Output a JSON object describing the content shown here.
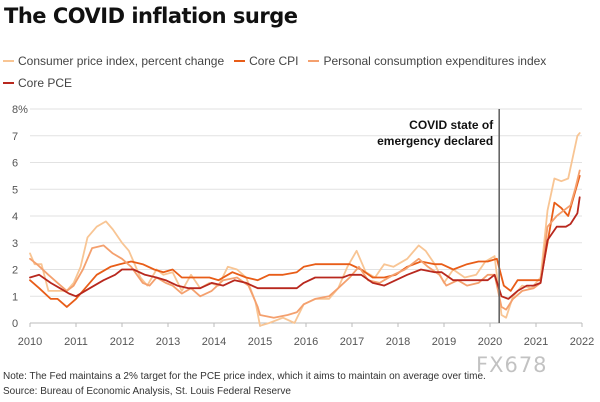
{
  "chart_data": {
    "type": "line",
    "title": "The COVID inflation surge",
    "ylabel": "",
    "xlabel": "",
    "xlim": [
      2010,
      2022
    ],
    "ylim": [
      0,
      8
    ],
    "y_ticks": [
      0,
      1,
      2,
      3,
      4,
      5,
      6,
      7,
      8
    ],
    "y_tick_labels": [
      "0",
      "1",
      "2",
      "3",
      "4",
      "5",
      "6",
      "7",
      "8%"
    ],
    "x_ticks": [
      2010,
      2011,
      2012,
      2013,
      2014,
      2015,
      2016,
      2017,
      2018,
      2019,
      2020,
      2021,
      2022
    ],
    "x_tick_labels": [
      "2010",
      "2011",
      "2012",
      "2013",
      "2014",
      "2015",
      "2016",
      "2017",
      "2018",
      "2019",
      "2020",
      "2021",
      "2022"
    ],
    "grid": "horizontal",
    "legend_position": "top",
    "annotation": {
      "x": 2020.2,
      "lines": [
        "COVID state of",
        "emergency declared"
      ]
    },
    "series": [
      {
        "name": "Consumer price index, percent change",
        "color": "#f8c594",
        "points": [
          [
            2010,
            2.6
          ],
          [
            2010.1,
            2.2
          ],
          [
            2010.25,
            2.2
          ],
          [
            2010.4,
            1.2
          ],
          [
            2010.6,
            1.2
          ],
          [
            2010.8,
            1.2
          ],
          [
            2010.95,
            1.5
          ],
          [
            2011.1,
            2.1
          ],
          [
            2011.25,
            3.2
          ],
          [
            2011.45,
            3.6
          ],
          [
            2011.65,
            3.8
          ],
          [
            2011.8,
            3.5
          ],
          [
            2012,
            3.0
          ],
          [
            2012.15,
            2.7
          ],
          [
            2012.4,
            1.7
          ],
          [
            2012.55,
            1.4
          ],
          [
            2012.75,
            2.0
          ],
          [
            2012.9,
            1.8
          ],
          [
            2013.1,
            1.9
          ],
          [
            2013.3,
            1.2
          ],
          [
            2013.5,
            1.8
          ],
          [
            2013.7,
            1.3
          ],
          [
            2013.9,
            1.5
          ],
          [
            2014.1,
            1.4
          ],
          [
            2014.3,
            2.1
          ],
          [
            2014.5,
            2.0
          ],
          [
            2014.7,
            1.7
          ],
          [
            2014.9,
            0.8
          ],
          [
            2015,
            -0.1
          ],
          [
            2015.2,
            0.0
          ],
          [
            2015.5,
            0.2
          ],
          [
            2015.75,
            0.0
          ],
          [
            2015.95,
            0.7
          ],
          [
            2016.2,
            0.9
          ],
          [
            2016.5,
            0.9
          ],
          [
            2016.7,
            1.3
          ],
          [
            2016.9,
            2.1
          ],
          [
            2017.1,
            2.7
          ],
          [
            2017.3,
            1.9
          ],
          [
            2017.5,
            1.7
          ],
          [
            2017.7,
            2.2
          ],
          [
            2017.9,
            2.1
          ],
          [
            2018.2,
            2.4
          ],
          [
            2018.45,
            2.9
          ],
          [
            2018.6,
            2.7
          ],
          [
            2018.8,
            2.2
          ],
          [
            2019.0,
            1.5
          ],
          [
            2019.2,
            2.0
          ],
          [
            2019.45,
            1.7
          ],
          [
            2019.7,
            1.8
          ],
          [
            2019.9,
            2.3
          ],
          [
            2020.1,
            2.5
          ],
          [
            2020.25,
            0.3
          ],
          [
            2020.35,
            0.2
          ],
          [
            2020.5,
            1.0
          ],
          [
            2020.7,
            1.4
          ],
          [
            2020.9,
            1.3
          ],
          [
            2021.1,
            1.7
          ],
          [
            2021.25,
            4.2
          ],
          [
            2021.4,
            5.4
          ],
          [
            2021.55,
            5.3
          ],
          [
            2021.7,
            5.4
          ],
          [
            2021.8,
            6.2
          ],
          [
            2021.9,
            7.0
          ],
          [
            2021.95,
            7.1
          ]
        ]
      },
      {
        "name": "Core CPI",
        "color": "#e85d18",
        "points": [
          [
            2010,
            1.6
          ],
          [
            2010.2,
            1.3
          ],
          [
            2010.45,
            0.9
          ],
          [
            2010.6,
            0.9
          ],
          [
            2010.8,
            0.6
          ],
          [
            2011,
            0.9
          ],
          [
            2011.2,
            1.3
          ],
          [
            2011.45,
            1.8
          ],
          [
            2011.75,
            2.1
          ],
          [
            2011.95,
            2.2
          ],
          [
            2012.2,
            2.3
          ],
          [
            2012.45,
            2.2
          ],
          [
            2012.7,
            2.0
          ],
          [
            2012.9,
            1.9
          ],
          [
            2013.1,
            2.0
          ],
          [
            2013.3,
            1.7
          ],
          [
            2013.6,
            1.7
          ],
          [
            2013.9,
            1.7
          ],
          [
            2014.1,
            1.6
          ],
          [
            2014.4,
            1.9
          ],
          [
            2014.7,
            1.7
          ],
          [
            2014.95,
            1.6
          ],
          [
            2015.2,
            1.8
          ],
          [
            2015.5,
            1.8
          ],
          [
            2015.8,
            1.9
          ],
          [
            2015.95,
            2.1
          ],
          [
            2016.2,
            2.2
          ],
          [
            2016.5,
            2.2
          ],
          [
            2016.8,
            2.2
          ],
          [
            2016.95,
            2.2
          ],
          [
            2017.2,
            2.0
          ],
          [
            2017.45,
            1.7
          ],
          [
            2017.7,
            1.7
          ],
          [
            2017.95,
            1.8
          ],
          [
            2018.2,
            2.1
          ],
          [
            2018.5,
            2.3
          ],
          [
            2018.8,
            2.2
          ],
          [
            2018.95,
            2.2
          ],
          [
            2019.2,
            2.0
          ],
          [
            2019.5,
            2.2
          ],
          [
            2019.75,
            2.3
          ],
          [
            2019.95,
            2.3
          ],
          [
            2020.15,
            2.4
          ],
          [
            2020.3,
            1.4
          ],
          [
            2020.45,
            1.2
          ],
          [
            2020.6,
            1.6
          ],
          [
            2020.8,
            1.6
          ],
          [
            2020.95,
            1.6
          ],
          [
            2021.1,
            1.6
          ],
          [
            2021.25,
            3.0
          ],
          [
            2021.4,
            4.5
          ],
          [
            2021.55,
            4.3
          ],
          [
            2021.7,
            4.0
          ],
          [
            2021.85,
            4.9
          ],
          [
            2021.95,
            5.5
          ]
        ]
      },
      {
        "name": "Personal consumption expenditures index",
        "color": "#f4a06e",
        "points": [
          [
            2010,
            2.4
          ],
          [
            2010.15,
            2.2
          ],
          [
            2010.4,
            1.8
          ],
          [
            2010.6,
            1.5
          ],
          [
            2010.8,
            1.2
          ],
          [
            2010.95,
            1.4
          ],
          [
            2011.15,
            2.0
          ],
          [
            2011.35,
            2.8
          ],
          [
            2011.6,
            2.9
          ],
          [
            2011.8,
            2.6
          ],
          [
            2012,
            2.4
          ],
          [
            2012.2,
            2.1
          ],
          [
            2012.45,
            1.5
          ],
          [
            2012.6,
            1.4
          ],
          [
            2012.75,
            1.7
          ],
          [
            2012.95,
            1.5
          ],
          [
            2013.1,
            1.4
          ],
          [
            2013.3,
            1.1
          ],
          [
            2013.5,
            1.3
          ],
          [
            2013.7,
            1.0
          ],
          [
            2013.95,
            1.2
          ],
          [
            2014.2,
            1.6
          ],
          [
            2014.5,
            1.7
          ],
          [
            2014.75,
            1.4
          ],
          [
            2014.95,
            0.6
          ],
          [
            2015,
            0.3
          ],
          [
            2015.3,
            0.2
          ],
          [
            2015.6,
            0.3
          ],
          [
            2015.8,
            0.4
          ],
          [
            2015.95,
            0.7
          ],
          [
            2016.2,
            0.9
          ],
          [
            2016.5,
            1.0
          ],
          [
            2016.7,
            1.3
          ],
          [
            2016.95,
            1.7
          ],
          [
            2017.15,
            2.1
          ],
          [
            2017.35,
            1.6
          ],
          [
            2017.6,
            1.5
          ],
          [
            2017.9,
            1.8
          ],
          [
            2018.15,
            2.0
          ],
          [
            2018.45,
            2.4
          ],
          [
            2018.65,
            2.1
          ],
          [
            2018.9,
            1.8
          ],
          [
            2019.05,
            1.4
          ],
          [
            2019.3,
            1.6
          ],
          [
            2019.5,
            1.4
          ],
          [
            2019.75,
            1.5
          ],
          [
            2019.95,
            1.8
          ],
          [
            2020.1,
            1.8
          ],
          [
            2020.25,
            0.6
          ],
          [
            2020.35,
            0.5
          ],
          [
            2020.5,
            0.9
          ],
          [
            2020.7,
            1.2
          ],
          [
            2020.95,
            1.3
          ],
          [
            2021.1,
            1.5
          ],
          [
            2021.25,
            3.6
          ],
          [
            2021.45,
            4.0
          ],
          [
            2021.6,
            4.2
          ],
          [
            2021.75,
            4.4
          ],
          [
            2021.85,
            5.0
          ],
          [
            2021.95,
            5.7
          ]
        ]
      },
      {
        "name": "Core PCE",
        "color": "#b8281e",
        "points": [
          [
            2010,
            1.7
          ],
          [
            2010.2,
            1.8
          ],
          [
            2010.45,
            1.5
          ],
          [
            2010.65,
            1.3
          ],
          [
            2010.85,
            1.1
          ],
          [
            2011,
            1.0
          ],
          [
            2011.3,
            1.3
          ],
          [
            2011.6,
            1.6
          ],
          [
            2011.85,
            1.8
          ],
          [
            2012,
            2.0
          ],
          [
            2012.25,
            2.0
          ],
          [
            2012.5,
            1.8
          ],
          [
            2012.75,
            1.7
          ],
          [
            2012.95,
            1.6
          ],
          [
            2013.2,
            1.4
          ],
          [
            2013.45,
            1.3
          ],
          [
            2013.7,
            1.3
          ],
          [
            2013.95,
            1.5
          ],
          [
            2014.2,
            1.4
          ],
          [
            2014.45,
            1.6
          ],
          [
            2014.7,
            1.5
          ],
          [
            2014.95,
            1.3
          ],
          [
            2015.2,
            1.3
          ],
          [
            2015.5,
            1.3
          ],
          [
            2015.8,
            1.3
          ],
          [
            2015.95,
            1.5
          ],
          [
            2016.2,
            1.7
          ],
          [
            2016.5,
            1.7
          ],
          [
            2016.8,
            1.7
          ],
          [
            2016.95,
            1.8
          ],
          [
            2017.2,
            1.8
          ],
          [
            2017.45,
            1.5
          ],
          [
            2017.7,
            1.4
          ],
          [
            2017.95,
            1.6
          ],
          [
            2018.2,
            1.8
          ],
          [
            2018.5,
            2.0
          ],
          [
            2018.8,
            1.9
          ],
          [
            2018.95,
            1.9
          ],
          [
            2019.2,
            1.6
          ],
          [
            2019.5,
            1.6
          ],
          [
            2019.75,
            1.6
          ],
          [
            2019.95,
            1.6
          ],
          [
            2020.1,
            1.8
          ],
          [
            2020.25,
            1.0
          ],
          [
            2020.4,
            0.9
          ],
          [
            2020.6,
            1.2
          ],
          [
            2020.8,
            1.4
          ],
          [
            2020.95,
            1.4
          ],
          [
            2021.1,
            1.5
          ],
          [
            2021.25,
            3.1
          ],
          [
            2021.45,
            3.6
          ],
          [
            2021.65,
            3.6
          ],
          [
            2021.75,
            3.7
          ],
          [
            2021.9,
            4.1
          ],
          [
            2021.95,
            4.7
          ]
        ]
      }
    ]
  },
  "footer": {
    "note": "Note: The Fed maintains a 2% target for the PCE price index, which it aims to maintain on average over time.",
    "source": "Source: Bureau of Economic Analysis, St. Louis Federal Reserve"
  },
  "watermark": "FX678"
}
